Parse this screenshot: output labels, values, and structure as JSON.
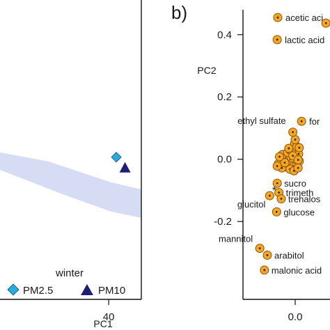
{
  "chart_data": [
    {
      "panel": "a",
      "type": "scatter",
      "xlabel": "PC1",
      "x_ticks": [
        40
      ],
      "xlim": [
        -10,
        55
      ],
      "ylim": [
        -1,
        1
      ],
      "legend_title": "winter",
      "legend_placement": "bottom",
      "series": [
        {
          "name": "PM2.5",
          "marker": "diamond",
          "color": "#29abe2",
          "points": [
            {
              "x": 43.5,
              "y": -0.05
            }
          ]
        },
        {
          "name": "PM10",
          "marker": "triangle",
          "color": "#1f1f7a",
          "points": [
            {
              "x": 47.5,
              "y": -0.12
            }
          ]
        }
      ],
      "ellipse_color": "#c9d0f2"
    },
    {
      "panel": "b",
      "panel_label": "b)",
      "type": "scatter",
      "ylabel": "PC2",
      "y_ticks": [
        0.4,
        0.2,
        0.0,
        -0.2
      ],
      "x_ticks": [
        0.0
      ],
      "tick_labels_y": [
        "0.4",
        "0.2",
        "0.0",
        "-0.2"
      ],
      "tick_labels_x": [
        "0.0"
      ],
      "xlim": [
        -0.09,
        0.06
      ],
      "ylim": [
        -0.45,
        0.48
      ],
      "marker_color": "#f5a623",
      "labeled_points": [
        {
          "label": "acetic aci",
          "x": -0.03,
          "y": 0.455
        },
        {
          "label": "lactic acid",
          "x": -0.031,
          "y": 0.384
        },
        {
          "label": "for",
          "x": 0.011,
          "y": 0.122
        },
        {
          "label": "ethyl sulfate",
          "x": -0.004,
          "y": 0.087
        },
        {
          "label": "sucro",
          "x": -0.031,
          "y": -0.077
        },
        {
          "label": "trimeth",
          "x": -0.028,
          "y": -0.107
        },
        {
          "label": "trehalos",
          "x": -0.024,
          "y": -0.127
        },
        {
          "label": "glucitol",
          "x": -0.044,
          "y": -0.117
        },
        {
          "label": "glucose",
          "x": -0.032,
          "y": -0.169
        },
        {
          "label": "mannitol",
          "x": -0.061,
          "y": -0.286
        },
        {
          "label": "arabitol",
          "x": -0.048,
          "y": -0.308
        },
        {
          "label": "malonic acid",
          "x": -0.053,
          "y": -0.356
        }
      ],
      "unlabeled_points": [
        {
          "x": 0.053,
          "y": 0.437
        },
        {
          "x": -0.013,
          "y": -0.017
        },
        {
          "x": -0.007,
          "y": -0.019
        },
        {
          "x": -0.002,
          "y": -0.021
        },
        {
          "x": 0.003,
          "y": -0.013
        },
        {
          "x": 0.007,
          "y": -0.006
        },
        {
          "x": 0.001,
          "y": 0.0
        },
        {
          "x": -0.006,
          "y": 0.004
        },
        {
          "x": -0.011,
          "y": 0.011
        },
        {
          "x": -0.016,
          "y": 0.004
        },
        {
          "x": -0.02,
          "y": -0.004
        },
        {
          "x": -0.025,
          "y": -0.009
        },
        {
          "x": -0.029,
          "y": -0.015
        },
        {
          "x": -0.022,
          "y": 0.015
        },
        {
          "x": -0.013,
          "y": 0.022
        },
        {
          "x": -0.006,
          "y": 0.028
        },
        {
          "x": 0.002,
          "y": 0.024
        },
        {
          "x": 0.006,
          "y": 0.017
        },
        {
          "x": -0.001,
          "y": 0.05
        },
        {
          "x": 0.003,
          "y": 0.04
        },
        {
          "x": -0.004,
          "y": 0.011
        },
        {
          "x": 0.007,
          "y": 0.037
        },
        {
          "x": -0.017,
          "y": -0.024
        },
        {
          "x": -0.023,
          "y": -0.028
        },
        {
          "x": -0.031,
          "y": -0.022
        },
        {
          "x": -0.009,
          "y": -0.032
        },
        {
          "x": -0.002,
          "y": -0.037
        },
        {
          "x": 0.005,
          "y": -0.028
        },
        {
          "x": 0.0,
          "y": 0.063
        },
        {
          "x": -0.011,
          "y": 0.035
        },
        {
          "x": 0.005,
          "y": -0.002
        },
        {
          "x": -0.018,
          "y": -0.011
        },
        {
          "x": -0.027,
          "y": 0.008
        }
      ],
      "asterisk": {
        "text": "*",
        "x": -0.036,
        "y": -0.099
      }
    }
  ]
}
